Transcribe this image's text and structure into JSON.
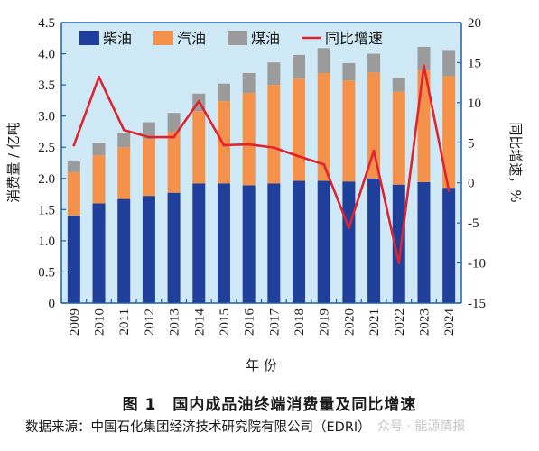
{
  "chart_data": {
    "type": "bar",
    "stacked": true,
    "categories": [
      "2009",
      "2010",
      "2011",
      "2012",
      "2013",
      "2014",
      "2015",
      "2016",
      "2017",
      "2018",
      "2019",
      "2020",
      "2021",
      "2022",
      "2023",
      "2024"
    ],
    "series": [
      {
        "name": "柴油",
        "type": "bar",
        "axis": "left",
        "color": "#1f3f9a",
        "values": [
          1.4,
          1.6,
          1.67,
          1.72,
          1.77,
          1.92,
          1.92,
          1.89,
          1.92,
          1.96,
          1.96,
          1.95,
          2.0,
          1.9,
          1.94,
          1.85
        ]
      },
      {
        "name": "汽油",
        "type": "bar",
        "axis": "left",
        "color": "#f4914a",
        "values": [
          0.7,
          0.77,
          0.83,
          0.91,
          0.98,
          1.16,
          1.32,
          1.48,
          1.58,
          1.64,
          1.73,
          1.62,
          1.7,
          1.49,
          1.79,
          1.79
        ]
      },
      {
        "name": "煤油",
        "type": "bar",
        "axis": "left",
        "color": "#9b9b9b",
        "values": [
          0.17,
          0.2,
          0.23,
          0.27,
          0.3,
          0.28,
          0.28,
          0.32,
          0.36,
          0.38,
          0.4,
          0.28,
          0.3,
          0.22,
          0.38,
          0.42
        ]
      },
      {
        "name": "同比增速",
        "type": "line",
        "axis": "right",
        "color": "#e0232e",
        "values": [
          4.7,
          13.2,
          6.6,
          5.7,
          5.7,
          10.2,
          4.7,
          4.8,
          4.4,
          3.3,
          2.3,
          -5.6,
          4.0,
          -10.0,
          14.6,
          -1.0
        ]
      }
    ],
    "ylabel": "消费量 / 亿吨",
    "y2label": "同比增速，%",
    "xlabel": "年 份",
    "ylim": [
      0,
      4.5
    ],
    "yticks": [
      "0",
      "0.5",
      "1.0",
      "1.5",
      "2.0",
      "2.5",
      "3.0",
      "3.5",
      "4.0",
      "4.5"
    ],
    "y2lim": [
      -15,
      20
    ],
    "y2ticks": [
      "-15",
      "-10",
      "-5",
      "0",
      "5",
      "10",
      "15",
      "20"
    ],
    "legend_position": "top",
    "plot_background": "#cfeaf6",
    "grid": false
  },
  "figure": {
    "title": "图 1　国内成品油终端消费量及同比增速",
    "source": "数据来源：中国石化集团经济技术研究院有限公司（EDRI）",
    "watermark": "众号 · 能源情报"
  }
}
